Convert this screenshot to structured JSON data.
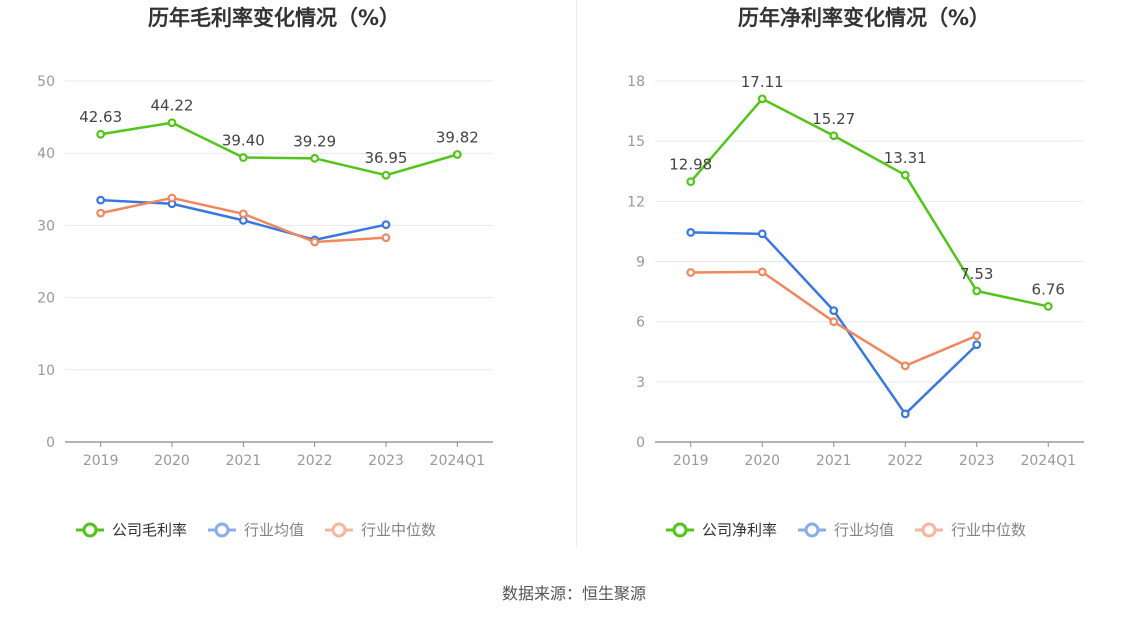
{
  "source_text": "数据来源：恒生聚源",
  "colors": {
    "company": "#52c41a",
    "industry_avg": "#3a78e0",
    "industry_median": "#f0875f",
    "grid": "#e6e9f5",
    "axis": "#888888"
  },
  "chart_data": [
    {
      "type": "line",
      "title": "历年毛利率变化情况（%）",
      "categories": [
        "2019",
        "2020",
        "2021",
        "2022",
        "2023",
        "2024Q1"
      ],
      "ylim": [
        0,
        50
      ],
      "yticks": [
        0,
        10,
        20,
        30,
        40,
        50
      ],
      "grid": true,
      "legend_position": "bottom",
      "series": [
        {
          "name": "公司毛利率",
          "key": "company",
          "values": [
            42.63,
            44.22,
            39.4,
            39.29,
            36.95,
            39.82
          ],
          "labels": [
            "42.63",
            "44.22",
            "39.40",
            "39.29",
            "36.95",
            "39.82"
          ]
        },
        {
          "name": "行业均值",
          "key": "industry_avg",
          "values": [
            33.5,
            33.0,
            30.7,
            28.0,
            30.1,
            null
          ]
        },
        {
          "name": "行业中位数",
          "key": "industry_median",
          "values": [
            31.7,
            33.8,
            31.6,
            27.7,
            28.3,
            null
          ]
        }
      ]
    },
    {
      "type": "line",
      "title": "历年净利率变化情况（%）",
      "categories": [
        "2019",
        "2020",
        "2021",
        "2022",
        "2023",
        "2024Q1"
      ],
      "ylim": [
        0,
        18
      ],
      "yticks": [
        0,
        3,
        6,
        9,
        12,
        15,
        18
      ],
      "grid": true,
      "legend_position": "bottom",
      "series": [
        {
          "name": "公司净利率",
          "key": "company",
          "values": [
            12.98,
            17.11,
            15.27,
            13.31,
            7.53,
            6.76
          ],
          "labels": [
            "12.98",
            "17.11",
            "15.27",
            "13.31",
            "7.53",
            "6.76"
          ]
        },
        {
          "name": "行业均值",
          "key": "industry_avg",
          "values": [
            10.45,
            10.38,
            6.55,
            1.4,
            4.85,
            null
          ]
        },
        {
          "name": "行业中位数",
          "key": "industry_median",
          "values": [
            8.45,
            8.48,
            6.0,
            3.8,
            5.3,
            null
          ]
        }
      ]
    }
  ]
}
